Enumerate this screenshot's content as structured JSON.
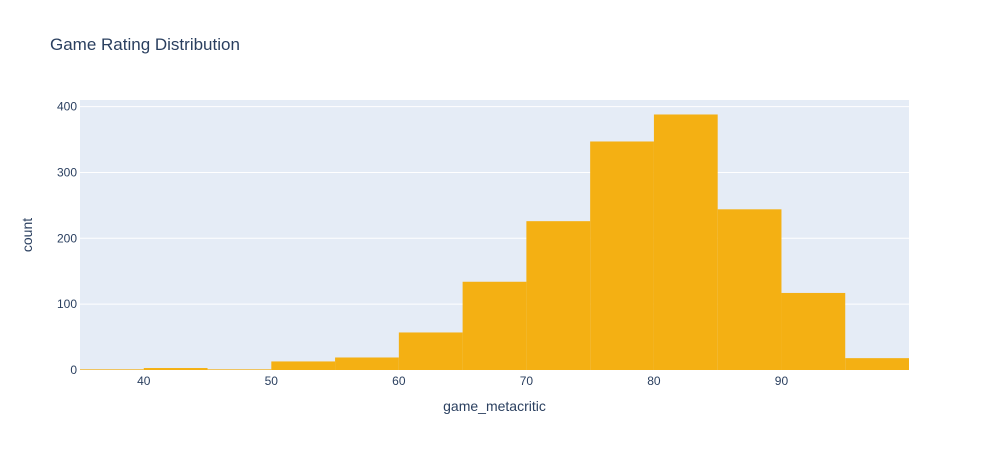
{
  "chart_data": {
    "type": "bar",
    "title": "Game Rating Distribution",
    "xlabel": "game_metacritic",
    "ylabel": "count",
    "xlim": [
      35,
      100
    ],
    "ylim": [
      0,
      410
    ],
    "xticks": [
      40,
      50,
      60,
      70,
      80,
      90
    ],
    "yticks": [
      0,
      100,
      200,
      300,
      400
    ],
    "grid": true,
    "bin_width": 5,
    "bin_starts": [
      35,
      40,
      45,
      50,
      55,
      60,
      65,
      70,
      75,
      80,
      85,
      90,
      95
    ],
    "values": [
      1,
      3,
      1,
      13,
      19,
      57,
      134,
      226,
      347,
      388,
      244,
      117,
      18
    ],
    "colors": {
      "bar": "#f4b013",
      "plot_bg": "#e5ecf6",
      "grid": "#ffffff",
      "text": "#2a3f5f"
    }
  }
}
